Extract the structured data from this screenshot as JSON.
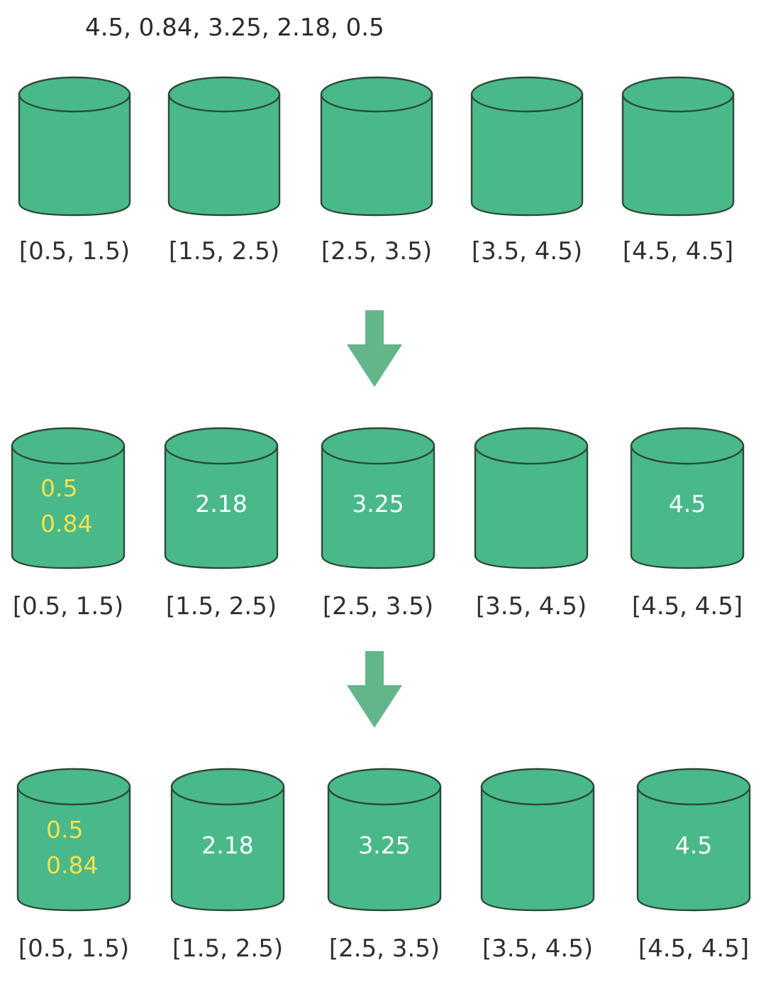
{
  "input_sequence": "4.5, 0.84, 3.25, 2.18, 0.5",
  "colors": {
    "bucket_fill": "#49b98a",
    "bucket_outline": "#2d4a38",
    "arrow": "#63b58a",
    "value_highlight": "#f4e04d",
    "value_normal": "#ffffff",
    "label_text": "#2f2f2f"
  },
  "rows": [
    {
      "buckets": [
        {
          "range": "[0.5, 1.5)",
          "values": []
        },
        {
          "range": "[1.5, 2.5)",
          "values": []
        },
        {
          "range": "[2.5, 3.5)",
          "values": []
        },
        {
          "range": "[3.5, 4.5)",
          "values": []
        },
        {
          "range": "[4.5, 4.5]",
          "values": []
        }
      ]
    },
    {
      "buckets": [
        {
          "range": "[0.5, 1.5)",
          "values": [
            "0.5",
            "0.84"
          ],
          "highlight": true
        },
        {
          "range": "[1.5, 2.5)",
          "values": [
            "2.18"
          ],
          "highlight": false
        },
        {
          "range": "[2.5, 3.5)",
          "values": [
            "3.25"
          ],
          "highlight": false
        },
        {
          "range": "[3.5, 4.5)",
          "values": [],
          "highlight": false
        },
        {
          "range": "[4.5, 4.5]",
          "values": [
            "4.5"
          ],
          "highlight": false
        }
      ]
    },
    {
      "buckets": [
        {
          "range": "[0.5, 1.5)",
          "values": [
            "0.5",
            "0.84"
          ],
          "highlight": true
        },
        {
          "range": "[1.5, 2.5)",
          "values": [
            "2.18"
          ],
          "highlight": false
        },
        {
          "range": "[2.5, 3.5)",
          "values": [
            "3.25"
          ],
          "highlight": false
        },
        {
          "range": "[3.5, 4.5)",
          "values": [],
          "highlight": false
        },
        {
          "range": "[4.5, 4.5]",
          "values": [
            "4.5"
          ],
          "highlight": false
        }
      ]
    }
  ]
}
